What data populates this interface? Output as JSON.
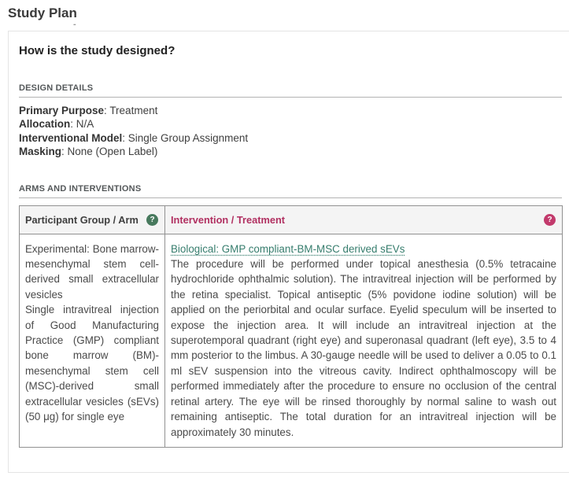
{
  "page": {
    "title": "Study Plan",
    "title_mark": "-"
  },
  "card": {
    "heading": "How is the study designed?",
    "design_details": {
      "section_label": "DESIGN DETAILS",
      "fields": [
        {
          "label": "Primary Purpose",
          "value": "Treatment"
        },
        {
          "label": "Allocation",
          "value": "N/A"
        },
        {
          "label": "Interventional Model",
          "value": "Single Group Assignment"
        },
        {
          "label": "Masking",
          "value": "None (Open Label)"
        }
      ]
    },
    "arms_table": {
      "section_label": "ARMS AND INTERVENTIONS",
      "columns": [
        {
          "label": "Participant Group / Arm",
          "help_glyph": "?",
          "accent_color": "#47795d"
        },
        {
          "label": "Intervention / Treatment",
          "help_glyph": "?",
          "accent_color": "#c23a6c"
        }
      ],
      "rows": [
        {
          "arm_title": "Experimental: Bone marrow-mesenchymal stem cell-derived small extracellular vesicles",
          "arm_description": "Single intravitreal injection of Good Manufacturing Practice (GMP) compliant bone marrow (BM)-mesenchymal stem cell (MSC)-derived small extracellular vesicles (sEVs) (50 μg) for single eye",
          "intervention_link": "Biological: GMP compliant-BM-MSC derived sEVs",
          "intervention_description": "The procedure will be performed under topical anesthesia (0.5% tetracaine hydrochloride ophthalmic solution). The intravitreal injection will be performed by the retina specialist. Topical antiseptic (5% povidone iodine solution) will be applied on the periorbital and ocular surface. Eyelid speculum will be inserted to expose the injection area. It will include an intravitreal injection at the superotemporal quadrant (right eye) and superonasal quadrant (left eye), 3.5 to 4 mm posterior to the limbus. A 30-gauge needle will be used to deliver a 0.05 to 0.1 ml sEV suspension into the vitreous cavity. Indirect ophthalmoscopy will be performed immediately after the procedure to ensure no occlusion of the central retinal artery. The eye will be rinsed thoroughly by normal saline to wash out remaining antiseptic. The total duration for an intravitreal injection will be approximately 30 minutes."
        }
      ]
    },
    "colors": {
      "intervention_header": "#b13061",
      "link_teal": "#367d6d",
      "help_green": "#47795d",
      "help_pink": "#c23a6c"
    }
  }
}
